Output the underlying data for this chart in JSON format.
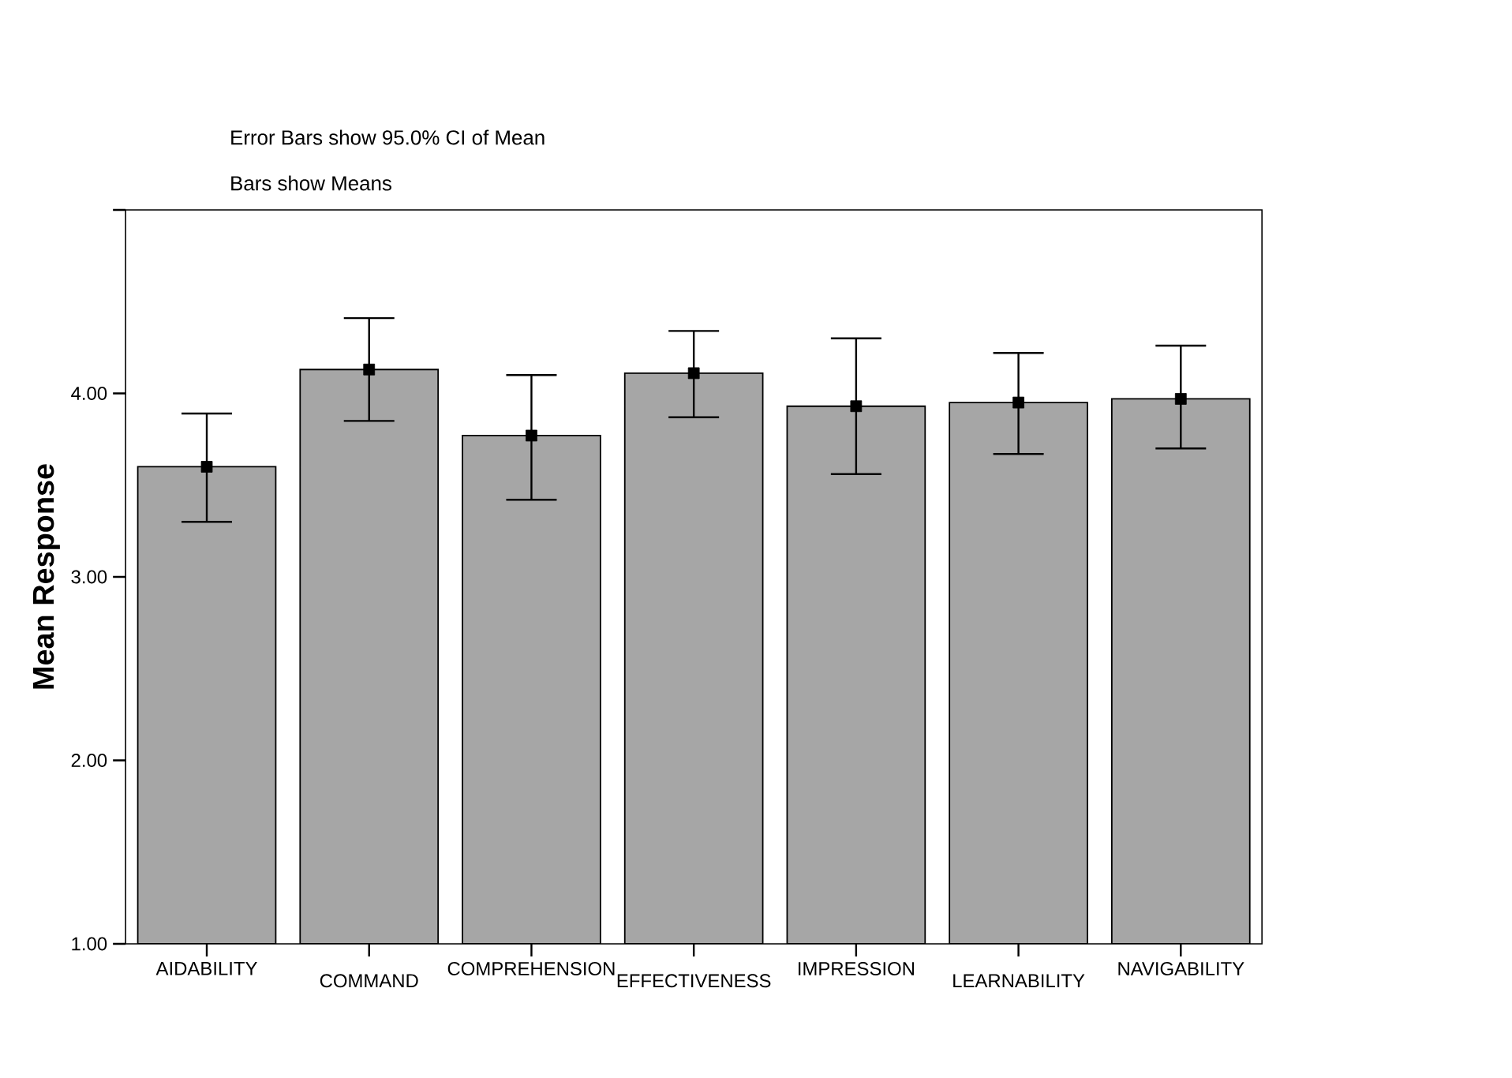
{
  "chart_data": {
    "type": "bar",
    "title": "Error Bars show 95.0% CI of Mean",
    "subtitle": "Bars show Means",
    "ylabel": "Mean Response",
    "categories": [
      "AIDABILITY",
      "COMMAND",
      "COMPREHENSION",
      "EFFECTIVENESS",
      "IMPRESSION",
      "LEARNABILITY",
      "NAVIGABILITY"
    ],
    "series": [
      {
        "color": "#a6a6a6",
        "values": [
          3.6,
          4.13,
          3.77,
          4.11,
          3.93,
          3.95,
          3.97
        ]
      },
      {
        "type": "scatter",
        "color": "#000000",
        "marker": "square",
        "x": [
          "AIDABILITY",
          "COMMAND",
          "COMPREHENSION",
          "EFFECTIVENESS",
          "IMPRESSION",
          "LEARNABILITY",
          "NAVIGABILITY"
        ],
        "values": [
          3.6,
          4.13,
          3.77,
          4.11,
          3.93,
          3.95,
          3.97
        ],
        "errors": [
          [
            3.3,
            3.89
          ],
          [
            3.85,
            4.41
          ],
          [
            3.42,
            4.1
          ],
          [
            3.87,
            4.34
          ],
          [
            3.56,
            4.3
          ],
          [
            3.67,
            4.22
          ],
          [
            3.7,
            4.26
          ]
        ]
      }
    ],
    "ylim": [
      1,
      5
    ],
    "yticks": [
      {
        "value": 1,
        "label": "1.00"
      },
      {
        "value": 2,
        "label": "2.00"
      },
      {
        "value": 3,
        "label": "3.00"
      },
      {
        "value": 4,
        "label": "4.00"
      },
      {
        "value": 5,
        "label": null
      }
    ]
  }
}
